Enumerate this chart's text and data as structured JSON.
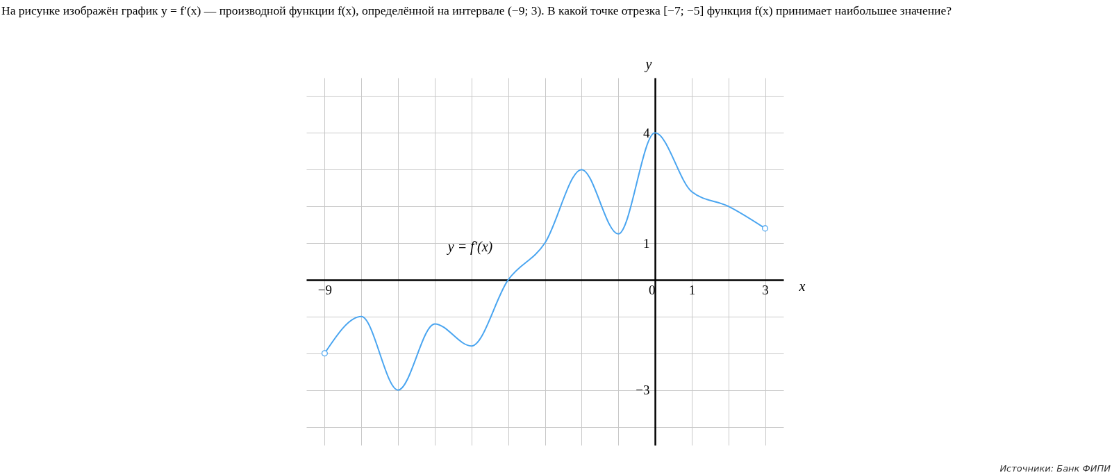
{
  "chart_data": {
    "type": "line",
    "title": "На рисунке изображён график y = f′(x) — производной функции f(x), определённой на интервале (−9; 3). В какой точке отрезка [−7; −5] функция f(x) принимает наибольшее значение?",
    "xlabel": "x",
    "ylabel": "y",
    "x": [
      -9,
      -8,
      -7,
      -6,
      -5,
      -4,
      -3,
      -2,
      -1,
      0,
      1,
      2,
      3
    ],
    "series": [
      {
        "color": "#4aa5f0",
        "values": [
          -2,
          -1,
          -3,
          -1.2,
          -1.8,
          0,
          1,
          3,
          1.25,
          4,
          2.4,
          2,
          1.4
        ]
      }
    ],
    "xlim": [
      -9.5,
      3.5
    ],
    "ylim": [
      -4.5,
      5.5
    ],
    "xticks": [
      {
        "value": -9,
        "label": "−9"
      },
      {
        "value": -8,
        "label": null
      },
      {
        "value": -7,
        "label": null
      },
      {
        "value": -6,
        "label": null
      },
      {
        "value": -5,
        "label": null
      },
      {
        "value": -4,
        "label": null
      },
      {
        "value": -3,
        "label": null
      },
      {
        "value": -2,
        "label": null
      },
      {
        "value": -1,
        "label": null
      },
      0,
      1,
      {
        "value": 2,
        "label": null
      },
      3
    ],
    "yticks": [
      {
        "value": -4,
        "label": null
      },
      {
        "value": -3,
        "label": "−3"
      },
      {
        "value": -2,
        "label": null
      },
      {
        "value": -1,
        "label": null
      },
      {
        "value": 0,
        "label": null
      },
      1,
      {
        "value": 2,
        "label": null
      },
      {
        "value": 3,
        "label": null
      },
      4,
      {
        "value": 5,
        "label": null
      }
    ],
    "grid": true,
    "annotations": [
      "y = f′(x)",
      "Источники: Банк ФИПИ"
    ]
  }
}
